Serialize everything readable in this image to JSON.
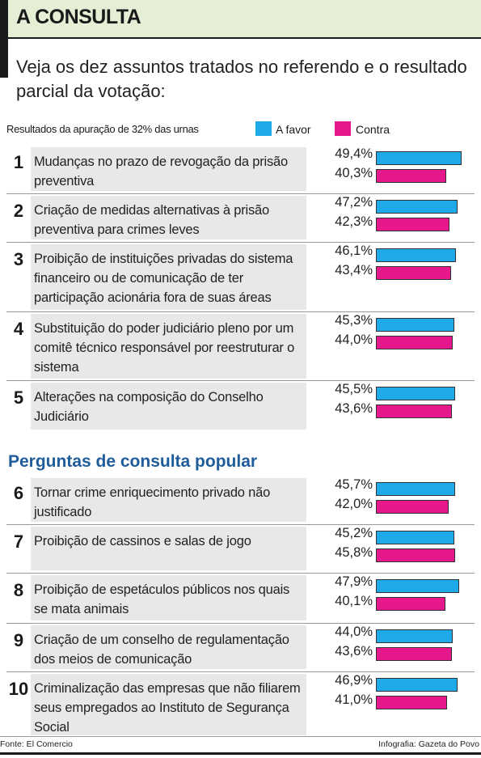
{
  "header": {
    "title": "A CONSULTA"
  },
  "subtitle": "Veja os dez assuntos tratados no referendo e o resultado parcial da votação:",
  "legend": {
    "caption": "Resultados da apuração de 32% das urnas",
    "favor": "A favor",
    "contra": "Contra"
  },
  "section2_title": "Perguntas de consulta popular",
  "footer": {
    "source": "Fonte: El Comercio",
    "credit": "Infografia: Gazeta do Povo"
  },
  "colors": {
    "favor": "#1eaae8",
    "contra": "#e6168d",
    "section_title": "#1f5c9a",
    "header_bg": "#e5efd6"
  },
  "chart_data": {
    "type": "bar",
    "orientation": "horizontal",
    "series": [
      {
        "name": "A favor"
      },
      {
        "name": "Contra"
      }
    ],
    "rows": [
      {
        "num": "1",
        "text": "Mudanças no prazo de revogação da prisão preventiva",
        "favor": 49.4,
        "contra": 40.3,
        "favor_label": "49,4%",
        "contra_label": "40,3%"
      },
      {
        "num": "2",
        "text": "Criação de medidas alternativas à prisão preventiva para crimes leves",
        "favor": 47.2,
        "contra": 42.3,
        "favor_label": "47,2%",
        "contra_label": "42,3%"
      },
      {
        "num": "3",
        "text": "Proibição de instituições privadas do sistema financeiro ou de comunicação de ter participação acionária fora de suas áreas",
        "favor": 46.1,
        "contra": 43.4,
        "favor_label": "46,1%",
        "contra_label": "43,4%"
      },
      {
        "num": "4",
        "text": "Substituição do poder judiciário pleno por um comitê técnico responsável por reestruturar o sistema",
        "favor": 45.3,
        "contra": 44.0,
        "favor_label": "45,3%",
        "contra_label": "44,0%"
      },
      {
        "num": "5",
        "text": "Alterações na composição do Conselho Judiciário",
        "favor": 45.5,
        "contra": 43.6,
        "favor_label": "45,5%",
        "contra_label": "43,6%"
      },
      {
        "num": "6",
        "text": "Tornar crime enriquecimento privado não justificado",
        "favor": 45.7,
        "contra": 42.0,
        "favor_label": "45,7%",
        "contra_label": "42,0%"
      },
      {
        "num": "7",
        "text": "Proibição de cassinos e salas de jogo",
        "favor": 45.2,
        "contra": 45.8,
        "favor_label": "45,2%",
        "contra_label": "45,8%"
      },
      {
        "num": "8",
        "text": "Proibição de espetáculos públicos nos quais se mata animais",
        "favor": 47.9,
        "contra": 40.1,
        "favor_label": "47,9%",
        "contra_label": "40,1%"
      },
      {
        "num": "9",
        "text": "Criação de um conselho de regulamentação dos meios de comunicação",
        "favor": 44.0,
        "contra": 43.6,
        "favor_label": "44,0%",
        "contra_label": "43,6%"
      },
      {
        "num": "10",
        "text": "Criminalização das empresas que não filiarem seus empregados ao Instituto de Segurança Social",
        "favor": 46.9,
        "contra": 41.0,
        "favor_label": "46,9%",
        "contra_label": "41,0%"
      }
    ]
  }
}
